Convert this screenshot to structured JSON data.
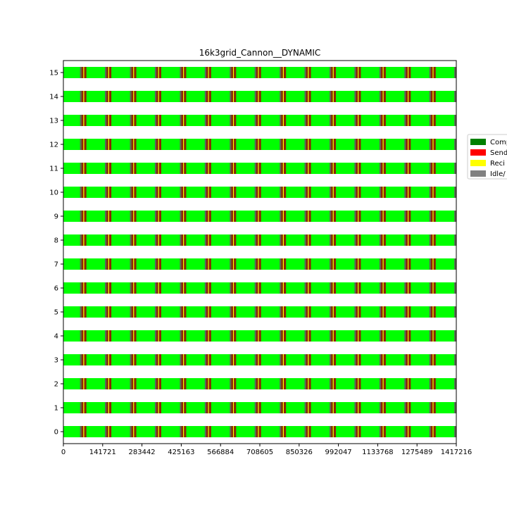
{
  "chart_data": {
    "type": "gantt",
    "title": "16k3grid_Cannon__DYNAMIC",
    "xlabel": "",
    "ylabel": "",
    "xlim": [
      0,
      1417216
    ],
    "x_ticks": [
      0,
      141721,
      283442,
      425163,
      566884,
      708605,
      850326,
      992047,
      1133768,
      1275489,
      1417216
    ],
    "x_tick_labels": [
      "0",
      "141721",
      "283442",
      "425163",
      "566884",
      "708605",
      "850326",
      "992047",
      "1133768",
      "1275489",
      "1417216"
    ],
    "y_ticks": [
      0,
      1,
      2,
      3,
      4,
      5,
      6,
      7,
      8,
      9,
      10,
      11,
      12,
      13,
      14,
      15
    ],
    "y_tick_labels": [
      "0",
      "1",
      "2",
      "3",
      "4",
      "5",
      "6",
      "7",
      "8",
      "9",
      "10",
      "11",
      "12",
      "13",
      "14",
      "15"
    ],
    "legend": {
      "placement": "right",
      "entries": [
        {
          "label": "Comp",
          "color": "#008000"
        },
        {
          "label": "Send",
          "color": "#ff0000"
        },
        {
          "label": "Reci",
          "color": "#ffff00"
        },
        {
          "label": "Idle/ ",
          "color": "#808080"
        }
      ]
    },
    "colors": {
      "compute": "#00ff00",
      "send": "#8b2500",
      "receive": "#ffff00",
      "idle": "#606060"
    },
    "pattern": {
      "period_start": 60000,
      "period": 90000,
      "period_count": 16,
      "segments": [
        {
          "state": "idle",
          "offset": 0,
          "duration": 5500
        },
        {
          "state": "send",
          "offset": 5500,
          "duration": 6500
        },
        {
          "state": "receive",
          "offset": 12000,
          "duration": 3000
        },
        {
          "state": "send",
          "offset": 15000,
          "duration": 8000
        }
      ]
    }
  }
}
